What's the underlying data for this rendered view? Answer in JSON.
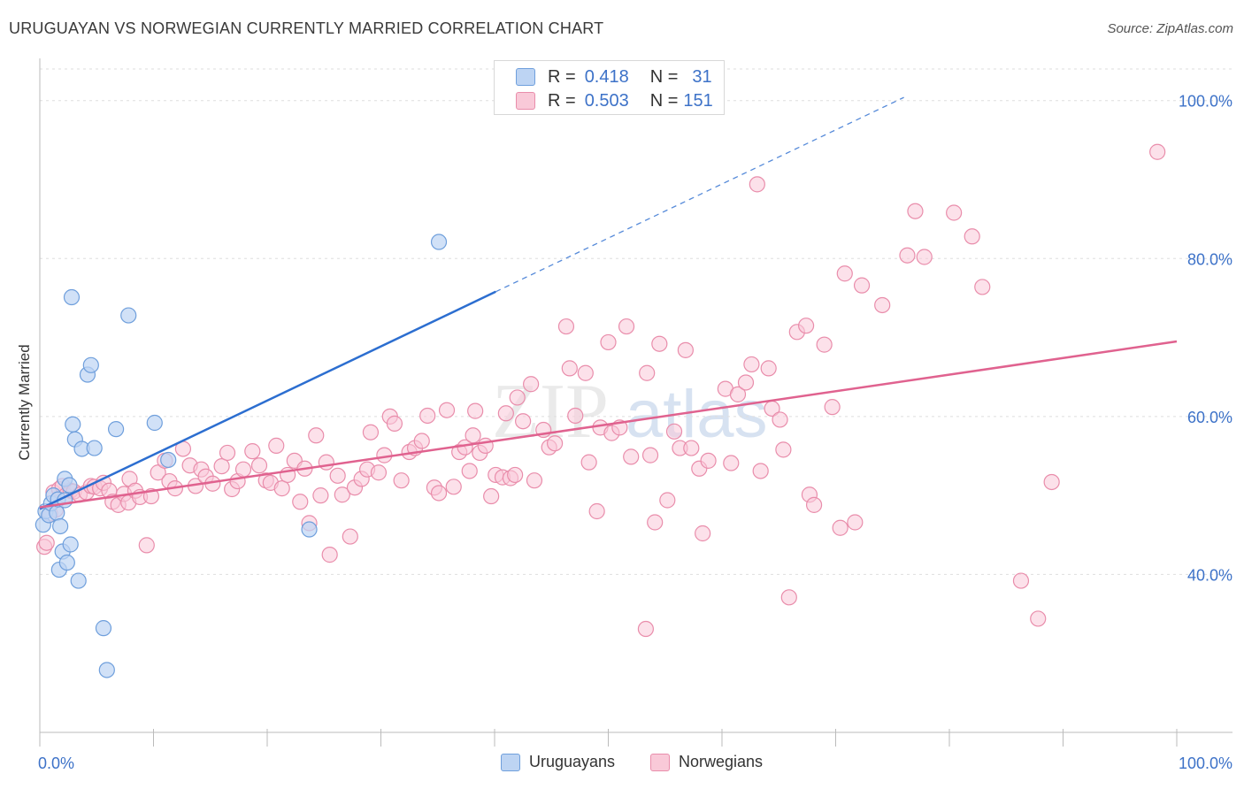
{
  "title": "URUGUAYAN VS NORWEGIAN CURRENTLY MARRIED CORRELATION CHART",
  "source": "Source: ZipAtlas.com",
  "watermark": {
    "zip": "ZIP",
    "atlas": "atlas"
  },
  "legend": [
    {
      "r_label": "R =",
      "r_value": "0.418",
      "n_label": "N =",
      "n_value": "31"
    },
    {
      "r_label": "R =",
      "r_value": "0.503",
      "n_label": "N =",
      "n_value": "151"
    }
  ],
  "bottom_legend": [
    {
      "label": "Uruguayans"
    },
    {
      "label": "Norwegians"
    }
  ],
  "chart_data": {
    "type": "scatter",
    "title": "URUGUAYAN VS NORWEGIAN CURRENTLY MARRIED CORRELATION CHART",
    "xlabel": "",
    "ylabel": "Currently Married",
    "xlim": [
      0,
      100
    ],
    "ylim": [
      20,
      104
    ],
    "x_tick_labels": [
      "0.0%",
      "100.0%"
    ],
    "y_ticks": [
      40,
      60,
      80,
      100
    ],
    "y_tick_labels": [
      "40.0%",
      "60.0%",
      "80.0%",
      "100.0%"
    ],
    "grid": true,
    "colors": {
      "uruguayans_fill": "#bdd4f3",
      "uruguayans_stroke": "#6f9fdc",
      "uruguayans_line": "#2c6ed0",
      "norwegians_fill": "#f9c9d8",
      "norwegians_stroke": "#e98dab",
      "norwegians_line": "#e0628f",
      "axis_label": "#3d72c8"
    },
    "series": [
      {
        "name": "Uruguayans",
        "points": [
          [
            0.3,
            46.3
          ],
          [
            0.5,
            48.0
          ],
          [
            0.8,
            47.5
          ],
          [
            1.0,
            49.0
          ],
          [
            1.2,
            50.0
          ],
          [
            1.5,
            47.8
          ],
          [
            1.7,
            40.6
          ],
          [
            1.6,
            49.5
          ],
          [
            1.8,
            46.1
          ],
          [
            2.0,
            42.9
          ],
          [
            2.2,
            49.4
          ],
          [
            2.2,
            52.1
          ],
          [
            2.4,
            41.5
          ],
          [
            2.6,
            51.3
          ],
          [
            2.7,
            43.8
          ],
          [
            2.8,
            75.1
          ],
          [
            2.9,
            59.0
          ],
          [
            3.1,
            57.1
          ],
          [
            3.4,
            39.2
          ],
          [
            3.7,
            55.9
          ],
          [
            4.2,
            65.3
          ],
          [
            4.5,
            66.5
          ],
          [
            4.8,
            56.0
          ],
          [
            5.6,
            33.2
          ],
          [
            5.9,
            27.9
          ],
          [
            6.7,
            58.4
          ],
          [
            7.8,
            72.8
          ],
          [
            10.1,
            59.2
          ],
          [
            11.3,
            54.5
          ],
          [
            23.7,
            45.7
          ],
          [
            35.1,
            82.1
          ]
        ],
        "trend": {
          "x0": 0,
          "y0": 48.3,
          "x1": 40.1,
          "y1": 75.8,
          "dash_to_x": 76,
          "dash_to_y": 100.4
        }
      },
      {
        "name": "Norwegians",
        "points": [
          [
            0.4,
            43.5
          ],
          [
            0.6,
            44.0
          ],
          [
            0.9,
            47.7
          ],
          [
            1.2,
            50.4
          ],
          [
            1.4,
            48.2
          ],
          [
            1.7,
            50.8
          ],
          [
            2.0,
            51.2
          ],
          [
            2.3,
            50.0
          ],
          [
            2.7,
            50.6
          ],
          [
            3.0,
            50.5
          ],
          [
            3.5,
            50.1
          ],
          [
            4.1,
            50.4
          ],
          [
            4.5,
            51.2
          ],
          [
            4.8,
            51.1
          ],
          [
            5.3,
            50.9
          ],
          [
            5.6,
            51.6
          ],
          [
            6.1,
            50.6
          ],
          [
            6.4,
            49.2
          ],
          [
            6.9,
            48.8
          ],
          [
            7.4,
            50.2
          ],
          [
            7.8,
            49.1
          ],
          [
            7.9,
            52.1
          ],
          [
            8.4,
            50.6
          ],
          [
            8.8,
            49.8
          ],
          [
            9.4,
            43.7
          ],
          [
            9.8,
            49.9
          ],
          [
            10.4,
            52.9
          ],
          [
            11.0,
            54.4
          ],
          [
            11.4,
            51.8
          ],
          [
            11.9,
            50.9
          ],
          [
            12.6,
            55.9
          ],
          [
            13.2,
            53.8
          ],
          [
            13.7,
            51.2
          ],
          [
            14.2,
            53.3
          ],
          [
            14.6,
            52.4
          ],
          [
            15.2,
            51.5
          ],
          [
            16.0,
            53.7
          ],
          [
            16.5,
            55.4
          ],
          [
            16.9,
            50.8
          ],
          [
            17.4,
            51.8
          ],
          [
            17.9,
            53.3
          ],
          [
            18.7,
            55.6
          ],
          [
            19.3,
            53.8
          ],
          [
            19.9,
            51.9
          ],
          [
            20.3,
            51.6
          ],
          [
            20.8,
            56.3
          ],
          [
            21.3,
            50.9
          ],
          [
            21.8,
            52.6
          ],
          [
            22.4,
            54.4
          ],
          [
            22.9,
            49.2
          ],
          [
            23.3,
            53.4
          ],
          [
            23.7,
            46.5
          ],
          [
            24.3,
            57.6
          ],
          [
            24.7,
            50.0
          ],
          [
            25.2,
            54.2
          ],
          [
            25.5,
            42.5
          ],
          [
            26.2,
            52.5
          ],
          [
            26.6,
            50.1
          ],
          [
            27.3,
            44.8
          ],
          [
            27.7,
            51.0
          ],
          [
            28.3,
            52.1
          ],
          [
            28.8,
            53.3
          ],
          [
            29.1,
            58.0
          ],
          [
            29.8,
            52.9
          ],
          [
            30.3,
            55.1
          ],
          [
            30.8,
            60.0
          ],
          [
            31.2,
            59.1
          ],
          [
            31.8,
            51.9
          ],
          [
            32.5,
            55.5
          ],
          [
            33.0,
            56.0
          ],
          [
            33.6,
            56.9
          ],
          [
            34.1,
            60.1
          ],
          [
            34.7,
            51.0
          ],
          [
            35.1,
            50.3
          ],
          [
            35.8,
            60.8
          ],
          [
            36.4,
            51.1
          ],
          [
            36.9,
            55.5
          ],
          [
            37.4,
            56.1
          ],
          [
            37.8,
            53.1
          ],
          [
            38.1,
            57.6
          ],
          [
            38.3,
            60.7
          ],
          [
            38.7,
            55.4
          ],
          [
            39.2,
            56.3
          ],
          [
            39.7,
            49.9
          ],
          [
            40.1,
            52.6
          ],
          [
            40.7,
            52.3
          ],
          [
            41.0,
            60.4
          ],
          [
            41.4,
            52.2
          ],
          [
            41.8,
            52.6
          ],
          [
            42.0,
            62.4
          ],
          [
            42.5,
            59.4
          ],
          [
            43.2,
            64.1
          ],
          [
            43.5,
            51.9
          ],
          [
            44.3,
            58.3
          ],
          [
            44.8,
            56.1
          ],
          [
            45.3,
            56.6
          ],
          [
            46.3,
            71.4
          ],
          [
            46.6,
            66.1
          ],
          [
            47.1,
            60.1
          ],
          [
            48.0,
            65.5
          ],
          [
            48.3,
            54.2
          ],
          [
            49.0,
            48.0
          ],
          [
            49.3,
            58.6
          ],
          [
            50.0,
            69.4
          ],
          [
            50.3,
            57.9
          ],
          [
            51.0,
            58.6
          ],
          [
            51.6,
            71.4
          ],
          [
            52.0,
            54.9
          ],
          [
            53.4,
            65.5
          ],
          [
            53.7,
            55.1
          ],
          [
            54.1,
            46.6
          ],
          [
            54.5,
            69.2
          ],
          [
            55.2,
            49.4
          ],
          [
            55.8,
            58.1
          ],
          [
            56.3,
            56.0
          ],
          [
            56.8,
            68.4
          ],
          [
            57.3,
            56.0
          ],
          [
            58.0,
            53.4
          ],
          [
            58.3,
            45.2
          ],
          [
            58.8,
            54.4
          ],
          [
            60.3,
            63.5
          ],
          [
            60.8,
            54.1
          ],
          [
            61.4,
            62.8
          ],
          [
            62.1,
            64.3
          ],
          [
            62.6,
            66.6
          ],
          [
            63.1,
            89.4
          ],
          [
            63.4,
            53.1
          ],
          [
            64.1,
            66.1
          ],
          [
            64.4,
            61.0
          ],
          [
            65.1,
            59.6
          ],
          [
            65.4,
            55.8
          ],
          [
            65.9,
            37.1
          ],
          [
            66.6,
            70.7
          ],
          [
            67.4,
            71.5
          ],
          [
            67.7,
            50.1
          ],
          [
            68.1,
            48.8
          ],
          [
            69.0,
            69.1
          ],
          [
            69.7,
            61.2
          ],
          [
            70.4,
            45.9
          ],
          [
            70.8,
            78.1
          ],
          [
            71.7,
            46.6
          ],
          [
            72.3,
            76.6
          ],
          [
            74.1,
            74.1
          ],
          [
            76.3,
            80.4
          ],
          [
            77.0,
            86.0
          ],
          [
            77.8,
            80.2
          ],
          [
            80.4,
            85.8
          ],
          [
            82.0,
            82.8
          ],
          [
            82.9,
            76.4
          ],
          [
            86.3,
            39.2
          ],
          [
            87.8,
            34.4
          ],
          [
            89.0,
            51.7
          ],
          [
            98.3,
            93.5
          ],
          [
            53.3,
            33.1
          ]
        ],
        "trend": {
          "x0": 0,
          "y0": 48.5,
          "x1": 100,
          "y1": 69.5
        }
      }
    ]
  }
}
